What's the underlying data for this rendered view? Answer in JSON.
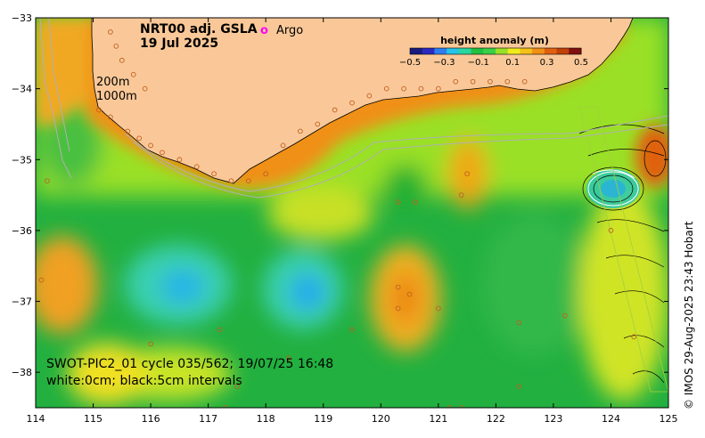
{
  "title": {
    "product": "NRT00 adj. GSLA",
    "date": "19 Jul 2025"
  },
  "legend": {
    "argo_symbol": "o",
    "argo_label": "Argo",
    "argo_color": "#ff00ff"
  },
  "depth_labels": [
    "200m",
    "1000m"
  ],
  "colorbar": {
    "title": "height anomaly (m)",
    "ticks": [
      "−0.5",
      "−0.3",
      "−0.1",
      "0.1",
      "0.3",
      "0.5"
    ],
    "range": [
      -0.5,
      0.5
    ],
    "colors": [
      "#1a1a80",
      "#2a2ac0",
      "#2d7df0",
      "#24c4e8",
      "#2ad6a0",
      "#22c040",
      "#3ad048",
      "#9ae028",
      "#f0ec1c",
      "#f5c018",
      "#f09018",
      "#e06010",
      "#c04008",
      "#801010"
    ]
  },
  "info": {
    "line1": "SWOT-PIC2_01 cycle 035/562; 19/07/25 16:48",
    "line2": "white:0cm; black:5cm intervals"
  },
  "credit": "© IMOS 29-Aug-2025 23:43 Hobart",
  "axes": {
    "x_ticks": [
      "114",
      "115",
      "116",
      "117",
      "118",
      "119",
      "120",
      "121",
      "122",
      "123",
      "124",
      "125"
    ],
    "y_ticks": [
      "−33",
      "−34",
      "−35",
      "−36",
      "−37",
      "−38"
    ],
    "lon_range": [
      114,
      125
    ],
    "lat_range": [
      -33,
      -38.5
    ]
  },
  "colors": {
    "land": "#fac898",
    "ocean_base": "#22b040"
  }
}
